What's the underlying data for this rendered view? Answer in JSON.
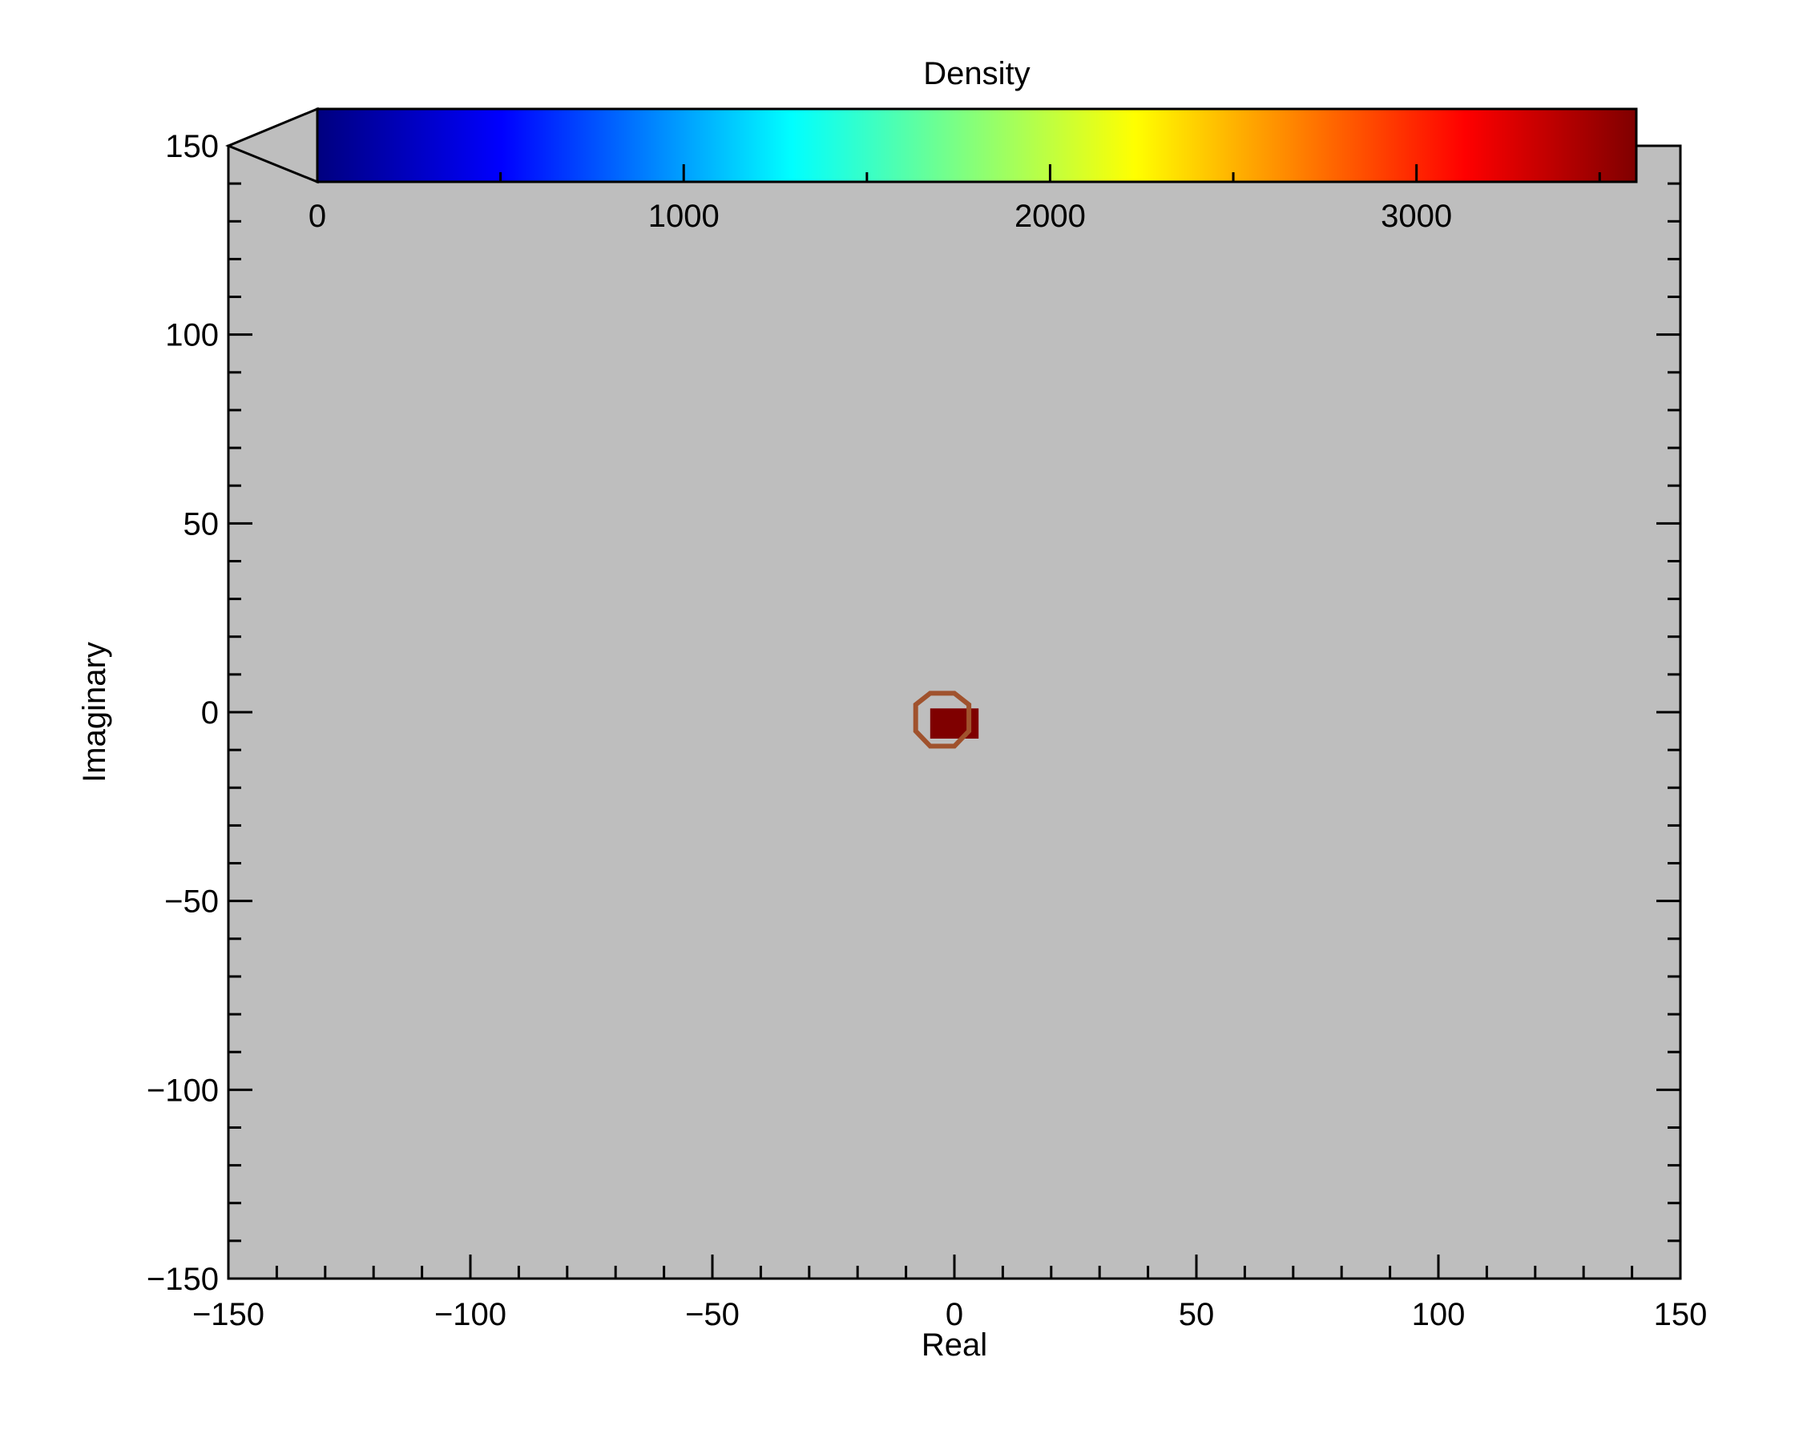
{
  "chart_data": {
    "type": "heatmap",
    "title": "",
    "xlabel": "Real",
    "ylabel": "Imaginary",
    "xlim": [
      -150,
      150
    ],
    "ylim": [
      -150,
      150
    ],
    "x_ticks": [
      -150,
      -100,
      -50,
      0,
      50,
      100,
      150
    ],
    "y_ticks": [
      -150,
      -100,
      -50,
      0,
      50,
      100,
      150
    ],
    "x_minor_step": 10,
    "y_minor_step": 10,
    "x_tick_labels": [
      "−150",
      "−100",
      "−50",
      "0",
      "50",
      "100",
      "150"
    ],
    "y_tick_labels": [
      "−150",
      "−100",
      "−50",
      "0",
      "50",
      "100",
      "150"
    ],
    "background_color": "#bebebe",
    "grid": false,
    "colorbar": {
      "label": "Density",
      "colormap": "jet",
      "range": [
        0,
        3600
      ],
      "ticks": [
        0,
        1000,
        2000,
        3000
      ],
      "tick_labels": [
        "0",
        "1000",
        "2000",
        "3000"
      ],
      "minor_step": 500,
      "placement": "top",
      "under_color": "#bebebe"
    },
    "cells": [
      {
        "x": [
          -5,
          5
        ],
        "y": [
          -7,
          1
        ],
        "value": 3600
      }
    ],
    "contours": [
      {
        "level_color": "#a0522d",
        "points": [
          [
            -5,
            5
          ],
          [
            0,
            5
          ],
          [
            3,
            2
          ],
          [
            3,
            -5
          ],
          [
            0,
            -9
          ],
          [
            -5,
            -9
          ],
          [
            -8,
            -5
          ],
          [
            -8,
            2
          ]
        ]
      }
    ]
  }
}
